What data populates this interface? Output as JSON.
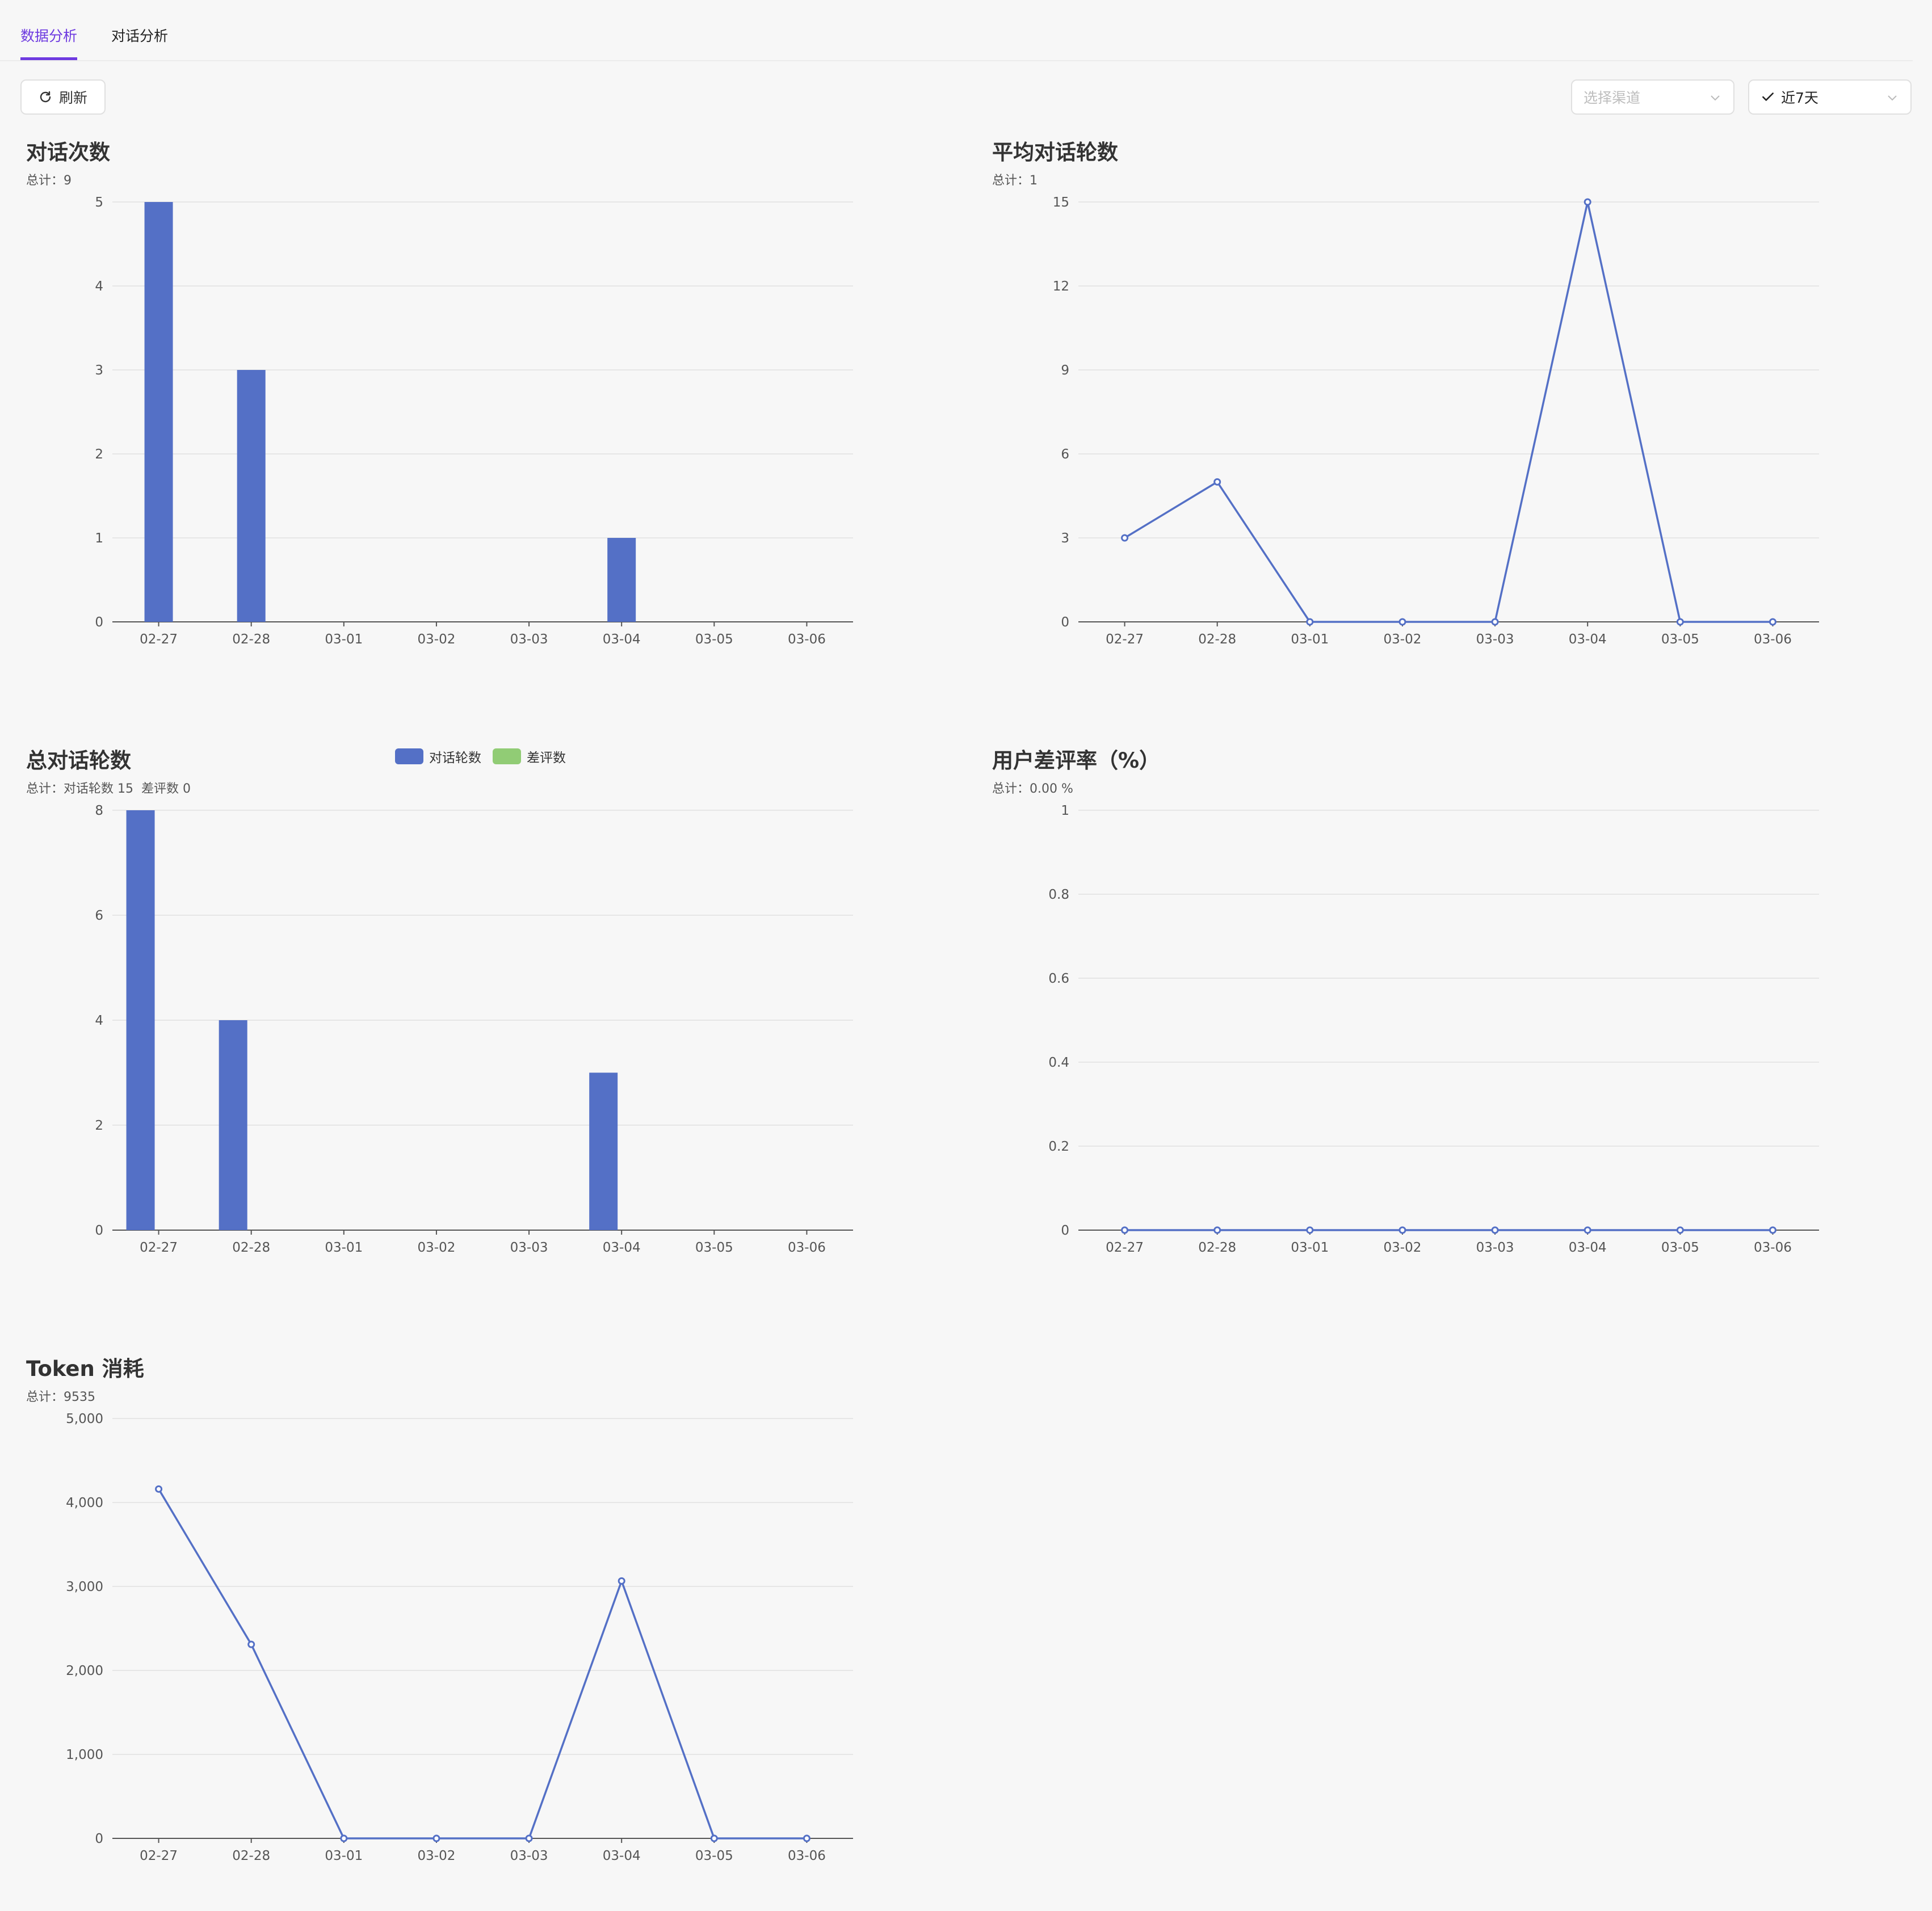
{
  "tabs": [
    {
      "label": "数据分析",
      "active": true
    },
    {
      "label": "对话分析",
      "active": false
    }
  ],
  "toolbar": {
    "refresh_label": "刷新",
    "channel_placeholder": "选择渠道",
    "range_value": "近7天"
  },
  "colors": {
    "accent": "#6e3ae0",
    "bar": "#5470c6",
    "line": "#5470c6",
    "bad": "#91cc75"
  },
  "charts": {
    "conversations": {
      "title": "对话次数",
      "total_label": "总计：9"
    },
    "avg_rounds": {
      "title": "平均对话轮数",
      "total_label": "总计：1"
    },
    "total_rounds": {
      "title": "总对话轮数",
      "total_rounds_label": "总计：对话轮数 15",
      "total_bad_label": "差评数 0",
      "legend": [
        "对话轮数",
        "差评数"
      ]
    },
    "bad_rate": {
      "title": "用户差评率（%）",
      "total_label": "总计：0.00 %"
    },
    "token": {
      "title": "Token 消耗",
      "total_label": "总计：9535"
    }
  },
  "chart_data": [
    {
      "type": "bar",
      "title": "对话次数",
      "categories": [
        "02-27",
        "02-28",
        "03-01",
        "03-02",
        "03-03",
        "03-04",
        "03-05",
        "03-06"
      ],
      "values": [
        5,
        3,
        0,
        0,
        0,
        1,
        0,
        0
      ],
      "yticks": [
        "0",
        "1",
        "2",
        "3",
        "4",
        "5"
      ],
      "ylim": [
        0,
        5
      ],
      "grid": true
    },
    {
      "type": "line",
      "title": "平均对话轮数",
      "categories": [
        "02-27",
        "02-28",
        "03-01",
        "03-02",
        "03-03",
        "03-04",
        "03-05",
        "03-06"
      ],
      "values": [
        3,
        5,
        0,
        0,
        0,
        15,
        0,
        0
      ],
      "yticks": [
        "0",
        "3",
        "6",
        "9",
        "12",
        "15"
      ],
      "ylim": [
        0,
        15
      ],
      "grid": true
    },
    {
      "type": "bar",
      "title": "总对话轮数",
      "categories": [
        "02-27",
        "02-28",
        "03-01",
        "03-02",
        "03-03",
        "03-04",
        "03-05",
        "03-06"
      ],
      "series": [
        {
          "name": "对话轮数",
          "values": [
            8,
            4,
            0,
            0,
            0,
            3,
            0,
            0
          ]
        },
        {
          "name": "差评数",
          "values": [
            0,
            0,
            0,
            0,
            0,
            0,
            0,
            0
          ]
        }
      ],
      "yticks": [
        "0",
        "2",
        "4",
        "6",
        "8"
      ],
      "ylim": [
        0,
        8
      ],
      "legend": "top-center",
      "grid": true
    },
    {
      "type": "line",
      "title": "用户差评率（%）",
      "categories": [
        "02-27",
        "02-28",
        "03-01",
        "03-02",
        "03-03",
        "03-04",
        "03-05",
        "03-06"
      ],
      "values": [
        0,
        0,
        0,
        0,
        0,
        0,
        0,
        0
      ],
      "yticks": [
        "0",
        "0.2",
        "0.4",
        "0.6",
        "0.8",
        "1"
      ],
      "ylim": [
        0,
        1
      ],
      "grid": true
    },
    {
      "type": "line",
      "title": "Token 消耗",
      "categories": [
        "02-27",
        "02-28",
        "03-01",
        "03-02",
        "03-03",
        "03-04",
        "03-05",
        "03-06"
      ],
      "values": [
        4160,
        2310,
        0,
        0,
        0,
        3065,
        0,
        0
      ],
      "yticks": [
        "0",
        "1,000",
        "2,000",
        "3,000",
        "4,000",
        "5,000"
      ],
      "ylim": [
        0,
        5000
      ],
      "grid": true
    }
  ]
}
